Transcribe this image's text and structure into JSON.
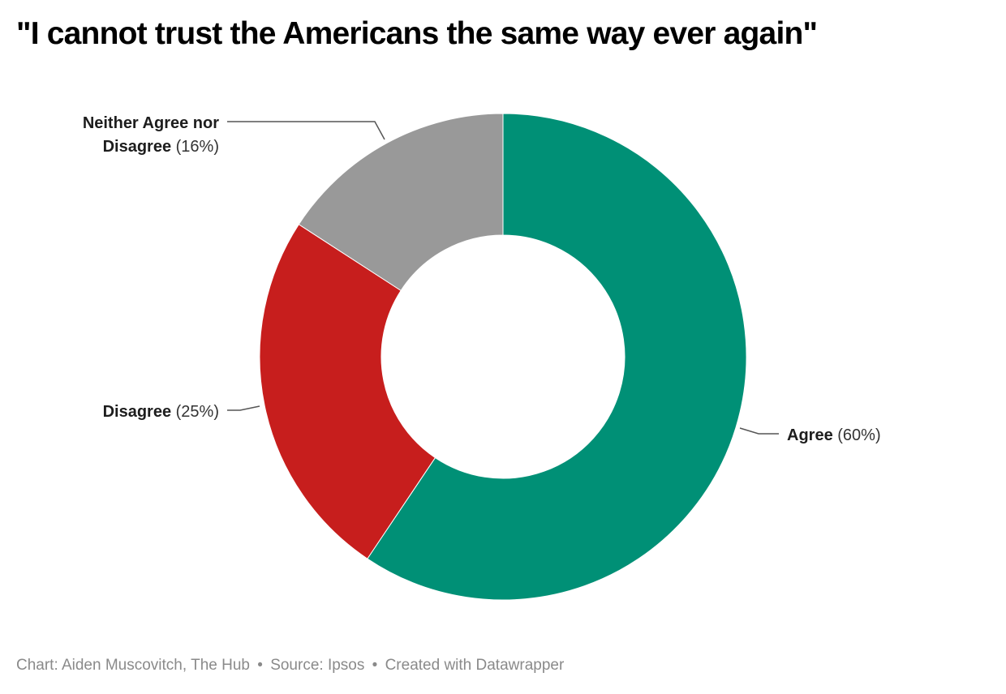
{
  "chart_data": {
    "type": "pie",
    "variant": "donut",
    "title": "\"I cannot trust the Americans the same way ever again\"",
    "slices": [
      {
        "label": "Agree",
        "value": 60,
        "display": "(60%)",
        "color": "#009076"
      },
      {
        "label": "Disagree",
        "value": 25,
        "display": "(25%)",
        "color": "#c71e1d"
      },
      {
        "label": "Neither Agree nor Disagree",
        "label_lines": [
          "Neither Agree nor",
          "Disagree"
        ],
        "value": 16,
        "display": "(16%)",
        "color": "#999999"
      }
    ],
    "start": "top",
    "direction": "clockwise",
    "legend": "none (direct labels)"
  },
  "footer": {
    "chart_credit": "Chart: Aiden Muscovitch, The Hub",
    "source": "Source: Ipsos",
    "tool": "Created with Datawrapper",
    "separator": "•"
  }
}
